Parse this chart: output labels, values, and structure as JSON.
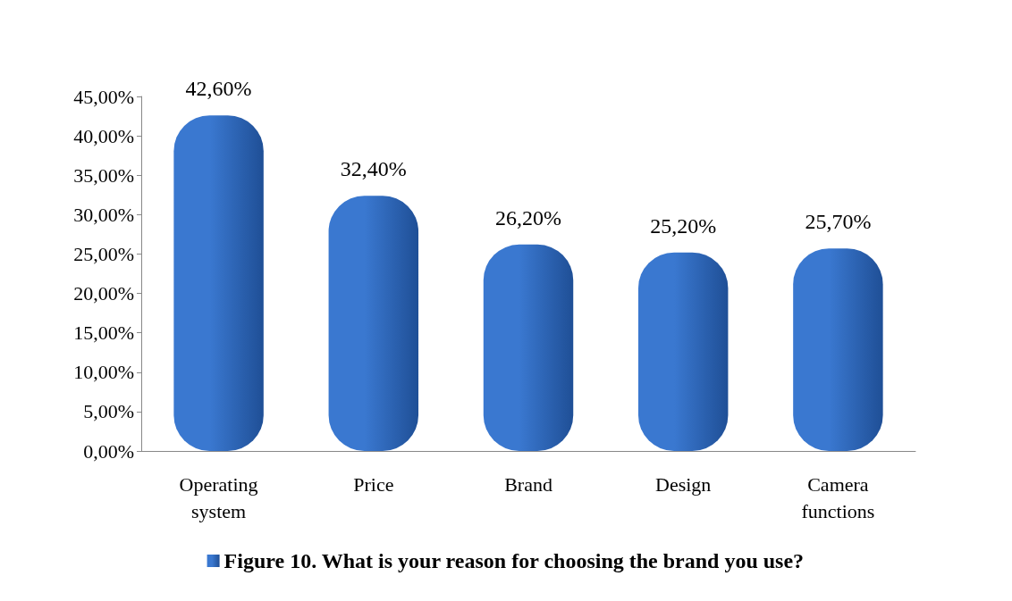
{
  "chart_data": {
    "type": "bar",
    "categories": [
      "Operating system",
      "Price",
      "Brand",
      "Design",
      "Camera functions"
    ],
    "series": [
      {
        "name": "Figure 10. What is your reason for choosing the brand you use?",
        "color": "#3a78d0",
        "values": [
          42.6,
          32.4,
          26.2,
          25.2,
          25.7
        ],
        "value_labels": [
          "42,60%",
          "32,40%",
          "26,20%",
          "25,20%",
          "25,70%"
        ]
      }
    ],
    "ylim": [
      0,
      45
    ],
    "yticks": [
      {
        "value": 0,
        "label": "0,00%"
      },
      {
        "value": 5,
        "label": "5,00%"
      },
      {
        "value": 10,
        "label": "10,00%"
      },
      {
        "value": 15,
        "label": "15,00%"
      },
      {
        "value": 20,
        "label": "20,00%"
      },
      {
        "value": 25,
        "label": "25,00%"
      },
      {
        "value": 30,
        "label": "30,00%"
      },
      {
        "value": 35,
        "label": "35,00%"
      },
      {
        "value": 40,
        "label": "40,00%"
      },
      {
        "value": 45,
        "label": "45,00%"
      }
    ],
    "grid": false,
    "legend": "bottom"
  }
}
